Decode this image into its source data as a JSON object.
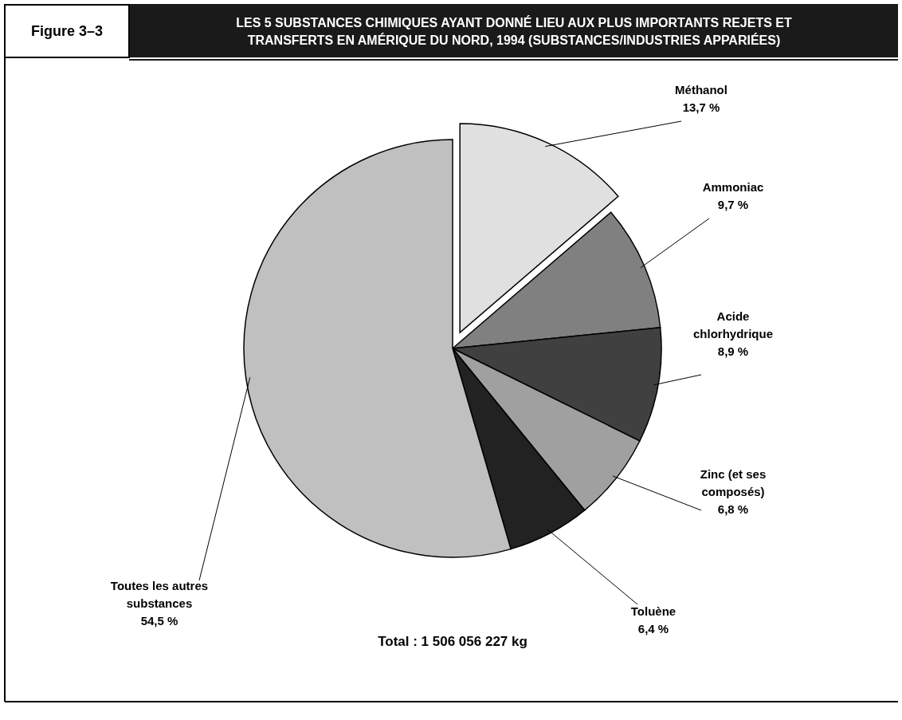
{
  "chart_data": {
    "type": "pie",
    "title": "LES 5 SUBSTANCES CHIMIQUES AYANT DONNÉ LIEU AUX PLUS IMPORTANTS REJETS ET TRANSFERTS EN AMÉRIQUE DU NORD, 1994 (SUBSTANCES/INDUSTRIES APPARIÉES)",
    "subtitle": "Figure 3–3",
    "categories": [
      "Méthanol",
      "Ammoniac",
      "Acide chlorhydrique",
      "Zinc (et ses composés)",
      "Toluène",
      "Toutes les autres substances"
    ],
    "values": [
      13.7,
      9.7,
      8.9,
      6.8,
      6.4,
      54.5
    ],
    "value_labels": [
      "13,7 %",
      "9,7 %",
      "8,9 %",
      "6,8 %",
      "6,4 %",
      "54,5 %"
    ],
    "colors": [
      "#e0e0e0",
      "#808080",
      "#404040",
      "#a0a0a0",
      "#222222",
      "#c0c0c0"
    ],
    "annotations": [
      "Total : 1 506 056 227 kg"
    ]
  }
}
